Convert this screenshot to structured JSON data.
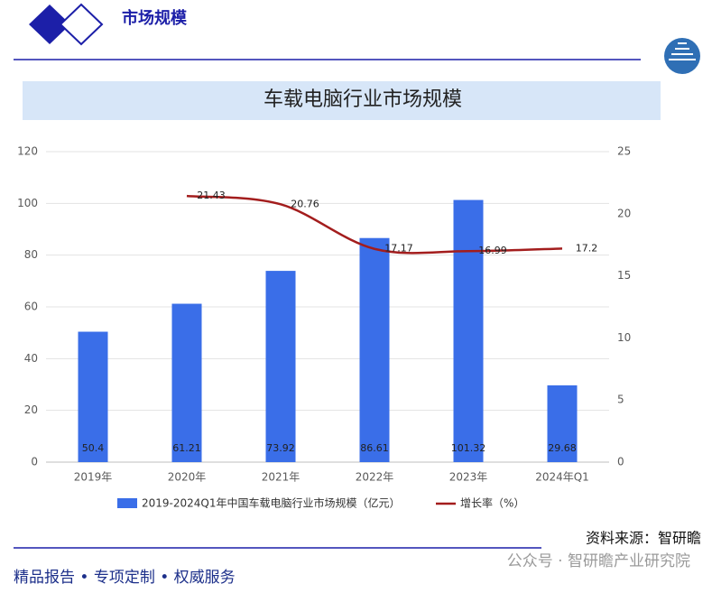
{
  "header": {
    "section": "市场规模"
  },
  "chart_data": {
    "type": "bar",
    "title": "车载电脑行业市场规模",
    "categories": [
      "2019年",
      "2020年",
      "2021年",
      "2022年",
      "2023年",
      "2024年Q1"
    ],
    "series": [
      {
        "name": "2019-2024Q1年中国车载电脑行业市场规模（亿元）",
        "type": "bar",
        "color": "#3a6ee8",
        "values": [
          50.4,
          61.21,
          73.92,
          86.61,
          101.32,
          29.68
        ]
      },
      {
        "name": "增长率（%）",
        "type": "line",
        "axis": "y2",
        "color": "#a31d1d",
        "values": [
          null,
          21.43,
          20.76,
          17.17,
          16.99,
          17.2
        ]
      }
    ],
    "ylim": [
      0,
      120
    ],
    "yticks": [
      0,
      20,
      40,
      60,
      80,
      100,
      120
    ],
    "y2lim": [
      0,
      25
    ],
    "y2ticks": [
      0,
      5,
      10,
      15,
      20,
      25
    ],
    "grid": true
  },
  "footer": {
    "source": "资料来源：智研瞻",
    "watermark": "公众号 · 智研瞻产业研究院",
    "slogan": "精品报告 • 专项定制 • 权威服务"
  }
}
